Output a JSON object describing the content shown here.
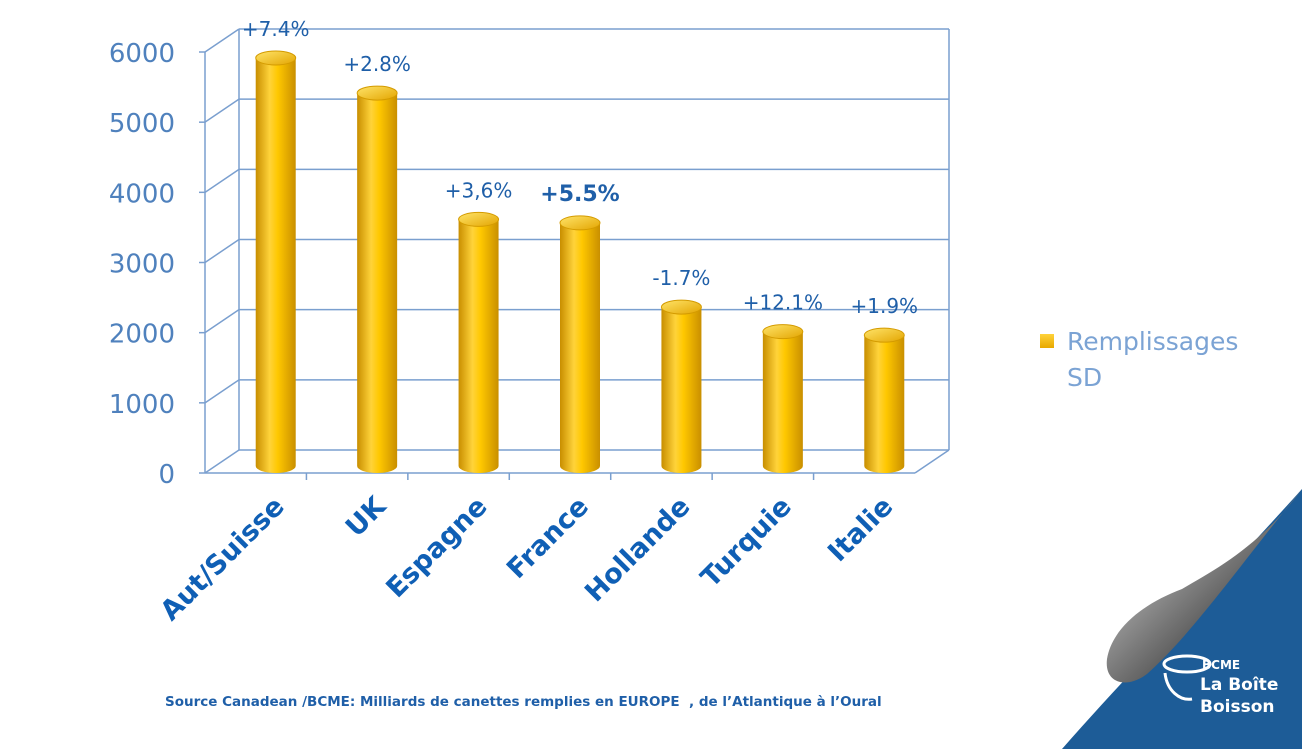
{
  "chart_data": {
    "type": "bar",
    "categories": [
      "Aut/Suisse",
      "UK",
      "Espagne",
      "France",
      "Hollande",
      "Turquie",
      "Italie"
    ],
    "series": [
      {
        "name": "Remplissages SD",
        "values": [
          5800,
          5300,
          3500,
          3450,
          2250,
          1900,
          1850
        ]
      }
    ],
    "data_labels": [
      "+7.4%",
      "+2.8%",
      "+3,6%",
      "+5.5%",
      "-1.7%",
      "+12.1%",
      "+1.9%"
    ],
    "bold_label_index": 3,
    "yticks": [
      "0",
      "1000",
      "2000",
      "3000",
      "4000",
      "5000",
      "6000"
    ],
    "ylim": [
      0,
      6000
    ],
    "grid": true,
    "legend_position": "right",
    "bar_color": "#f2bb00",
    "axis_color": "#4f81bd",
    "label_color": "#1f5fa8"
  },
  "legend": {
    "line1": "Remplissages",
    "line2": "SD"
  },
  "source": "Source Canadean /BCME: Milliards de canettes remplies en EUROPE  , de l’Atlantique à l’Oural",
  "logo": {
    "org": "BCME",
    "line1": "La Boîte",
    "line2": "Boisson"
  }
}
